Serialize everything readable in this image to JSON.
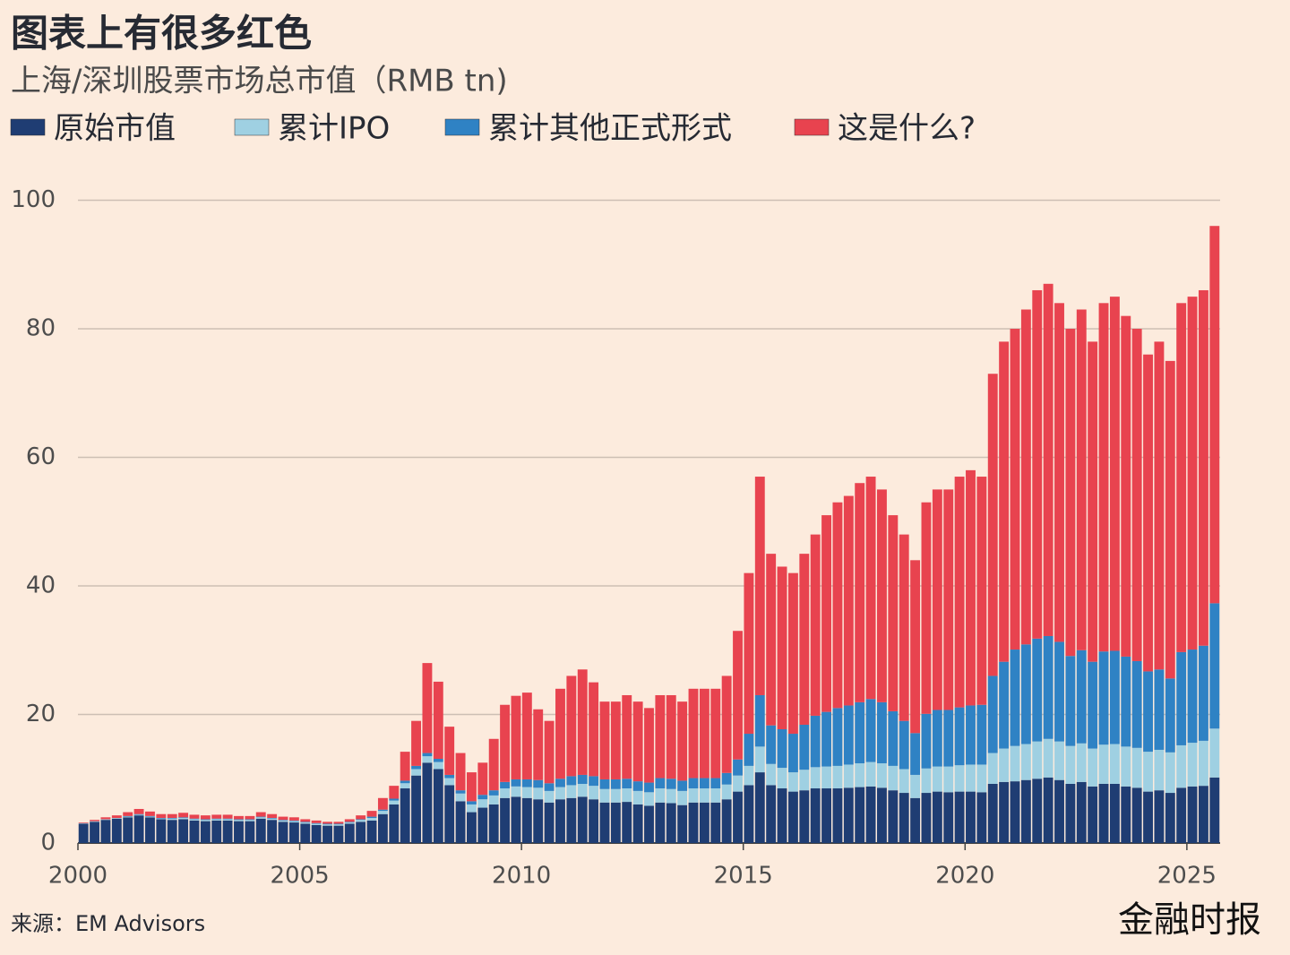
{
  "chart_data": {
    "type": "stacked-bar",
    "title": "图表上有很多红色",
    "subtitle": "上海/深圳股票市场总市值（RMB tn)",
    "source": "来源：EM Advisors",
    "brand": "金融时报",
    "xlim": [
      2000,
      2025.75
    ],
    "xticks": [
      2000,
      2005,
      2010,
      2015,
      2020,
      2025
    ],
    "ylim": [
      0,
      103
    ],
    "yticks": [
      0,
      20,
      40,
      60,
      80,
      100
    ],
    "grid": true,
    "x": [
      2000,
      2000.25,
      2000.5,
      2000.75,
      2001,
      2001.25,
      2001.5,
      2001.75,
      2002,
      2002.25,
      2002.5,
      2002.75,
      2003,
      2003.25,
      2003.5,
      2003.75,
      2004,
      2004.25,
      2004.5,
      2004.75,
      2005,
      2005.25,
      2005.5,
      2005.75,
      2006,
      2006.25,
      2006.5,
      2006.75,
      2007,
      2007.25,
      2007.5,
      2007.75,
      2008,
      2008.25,
      2008.5,
      2008.75,
      2009,
      2009.25,
      2009.5,
      2009.75,
      2010,
      2010.25,
      2010.5,
      2010.75,
      2011,
      2011.25,
      2011.5,
      2011.75,
      2012,
      2012.25,
      2012.5,
      2012.75,
      2013,
      2013.25,
      2013.5,
      2013.75,
      2014,
      2014.25,
      2014.5,
      2014.75,
      2015,
      2015.25,
      2015.5,
      2015.75,
      2016,
      2016.25,
      2016.5,
      2016.75,
      2017,
      2017.25,
      2017.5,
      2017.75,
      2018,
      2018.25,
      2018.5,
      2018.75,
      2019,
      2019.25,
      2019.5,
      2019.75,
      2020,
      2020.25,
      2020.5,
      2020.75,
      2021,
      2021.25,
      2021.5,
      2021.75,
      2022,
      2022.25,
      2022.5,
      2022.75,
      2023,
      2023.25,
      2023.5,
      2023.75,
      2024,
      2024.25,
      2024.5,
      2024.75,
      2025,
      2025.25,
      2025.5
    ],
    "series": [
      {
        "name": "原始市值",
        "color": "#1f3d73",
        "values": [
          3.0,
          3.3,
          3.6,
          3.8,
          4.0,
          4.3,
          4.0,
          3.7,
          3.6,
          3.7,
          3.5,
          3.4,
          3.5,
          3.5,
          3.4,
          3.4,
          3.8,
          3.6,
          3.3,
          3.2,
          3.0,
          2.8,
          2.7,
          2.7,
          3.0,
          3.3,
          3.5,
          4.5,
          6,
          8.5,
          10.5,
          12.5,
          11.5,
          9,
          6.5,
          4.8,
          5.5,
          6,
          7,
          7.2,
          7,
          6.8,
          6.3,
          6.8,
          7,
          7.2,
          6.8,
          6.3,
          6.3,
          6.4,
          6,
          5.8,
          6.3,
          6.2,
          5.9,
          6.3,
          6.3,
          6.3,
          6.8,
          8,
          9,
          11,
          9,
          8.5,
          8,
          8.2,
          8.5,
          8.5,
          8.5,
          8.6,
          8.7,
          8.8,
          8.6,
          8.2,
          7.8,
          7,
          7.8,
          8,
          7.9,
          8,
          8,
          7.9,
          9.2,
          9.5,
          9.6,
          9.8,
          10,
          10.2,
          9.8,
          9.2,
          9.5,
          8.8,
          9.2,
          9.2,
          8.8,
          8.6,
          8,
          8.2,
          7.8,
          8.6,
          8.8,
          8.9,
          10.2
        ]
      },
      {
        "name": "累计IPO",
        "color": "#9fd0e2",
        "values": [
          0.1,
          0.1,
          0.1,
          0.1,
          0.1,
          0.1,
          0.1,
          0.1,
          0.2,
          0.2,
          0.2,
          0.2,
          0.2,
          0.2,
          0.2,
          0.2,
          0.2,
          0.2,
          0.2,
          0.2,
          0.2,
          0.2,
          0.2,
          0.2,
          0.2,
          0.3,
          0.4,
          0.5,
          0.6,
          0.8,
          1,
          1,
          1.1,
          1.1,
          1.2,
          1.2,
          1.3,
          1.4,
          1.5,
          1.6,
          1.7,
          1.8,
          1.8,
          1.9,
          2,
          2,
          2.1,
          2.1,
          2.1,
          2.1,
          2.1,
          2.1,
          2.2,
          2.2,
          2.2,
          2.2,
          2.2,
          2.2,
          2.3,
          2.5,
          3,
          4,
          3.3,
          3.2,
          3,
          3.2,
          3.3,
          3.4,
          3.5,
          3.6,
          3.7,
          3.8,
          3.8,
          3.8,
          3.7,
          3.6,
          3.8,
          3.9,
          4,
          4.1,
          4.2,
          4.3,
          4.8,
          5.2,
          5.5,
          5.6,
          5.8,
          6,
          6,
          5.9,
          6,
          5.9,
          6.1,
          6.2,
          6.2,
          6.2,
          6.2,
          6.3,
          6.3,
          6.6,
          6.8,
          7,
          7.6
        ]
      },
      {
        "name": "累计其他正式形式",
        "color": "#2f82c4",
        "values": [
          0,
          0,
          0,
          0,
          0.1,
          0.1,
          0.1,
          0.1,
          0.1,
          0.1,
          0.1,
          0.1,
          0.1,
          0.1,
          0.1,
          0.1,
          0.1,
          0.1,
          0.1,
          0.1,
          0.1,
          0.1,
          0.1,
          0.1,
          0.1,
          0.1,
          0.2,
          0.2,
          0.3,
          0.4,
          0.5,
          0.5,
          0.5,
          0.5,
          0.5,
          0.5,
          0.7,
          0.8,
          1,
          1.1,
          1.2,
          1.2,
          1.2,
          1.3,
          1.4,
          1.4,
          1.5,
          1.5,
          1.5,
          1.5,
          1.5,
          1.5,
          1.6,
          1.6,
          1.6,
          1.6,
          1.6,
          1.6,
          1.8,
          2.5,
          5,
          8,
          6,
          6,
          6,
          7,
          8,
          8.5,
          9,
          9.2,
          9.5,
          9.8,
          9.5,
          8.5,
          7.5,
          6.5,
          8.5,
          8.8,
          8.8,
          9,
          9.2,
          9.3,
          12,
          13.5,
          15,
          15.5,
          16,
          16,
          15.5,
          14,
          14.5,
          13.5,
          14.5,
          14.5,
          14,
          13.5,
          12.5,
          12.5,
          11.5,
          14.5,
          14.5,
          14.8,
          19.5
        ]
      },
      {
        "name": "这是什么?",
        "color": "#e8434f",
        "values": [
          0.1,
          0.2,
          0.3,
          0.4,
          0.6,
          0.8,
          0.7,
          0.6,
          0.6,
          0.7,
          0.6,
          0.6,
          0.6,
          0.6,
          0.5,
          0.5,
          0.7,
          0.6,
          0.5,
          0.5,
          0.4,
          0.4,
          0.3,
          0.3,
          0.4,
          0.6,
          0.9,
          1.8,
          2,
          4.5,
          7,
          14,
          12,
          7.5,
          5.8,
          4.5,
          5,
          8,
          12,
          13,
          13.5,
          11,
          9.7,
          14,
          15.6,
          16.4,
          14.6,
          12.1,
          12.1,
          13,
          12.4,
          11.6,
          12.9,
          13,
          12.3,
          13.9,
          13.9,
          13.9,
          15.1,
          20,
          25,
          34,
          26.7,
          25.3,
          25,
          26.6,
          28.2,
          30.6,
          32,
          32.6,
          34.1,
          34.6,
          33.1,
          30.5,
          29,
          26.9,
          32.9,
          34.3,
          34.3,
          35.9,
          36.6,
          35.5,
          47,
          49.8,
          49.9,
          52.1,
          54.2,
          54.8,
          52.7,
          50.9,
          53,
          49.8,
          54.2,
          55.1,
          53,
          51.7,
          49.3,
          51,
          49.4,
          54.3,
          54.9,
          55.3,
          58.7
        ]
      }
    ]
  }
}
